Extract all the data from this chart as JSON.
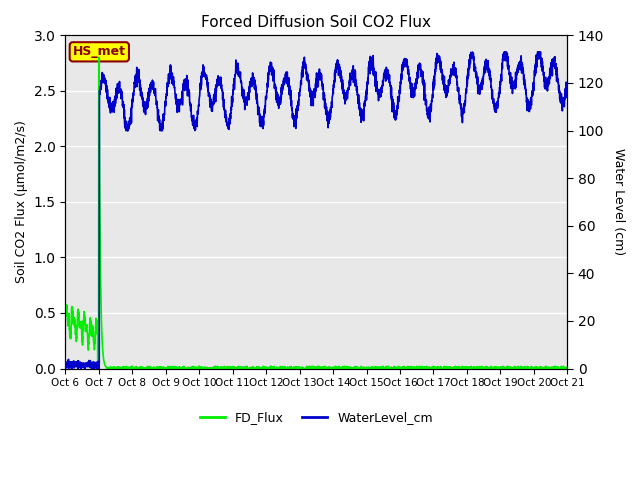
{
  "title": "Forced Diffusion Soil CO2 Flux",
  "ylabel_left": "Soil CO2 Flux (μmol/m2/s)",
  "ylabel_right": "Water Level (cm)",
  "ylim_left": [
    0.0,
    3.0
  ],
  "ylim_right": [
    0,
    140
  ],
  "yticks_left": [
    0.0,
    0.5,
    1.0,
    1.5,
    2.0,
    2.5,
    3.0
  ],
  "yticks_right": [
    0,
    20,
    40,
    60,
    80,
    100,
    120,
    140
  ],
  "xtick_labels": [
    "Oct 6",
    "Oct 7",
    "Oct 8",
    "Oct 9",
    "Oct 10",
    "Oct 11",
    "Oct 12",
    "Oct 13",
    "Oct 14",
    "Oct 15",
    "Oct 16",
    "Oct 17",
    "Oct 18",
    "Oct 19",
    "Oct 20",
    "Oct 21"
  ],
  "fd_flux_color": "#00ee00",
  "water_color": "#0000cc",
  "bg_color": "#e8e8e8",
  "grid_color": "#ffffff",
  "legend_label_fd": "FD_Flux",
  "legend_label_water": "WaterLevel_cm",
  "site_label": "HS_met",
  "site_label_bg": "#ffff00",
  "site_label_border": "#8b0000",
  "total_days": 15
}
